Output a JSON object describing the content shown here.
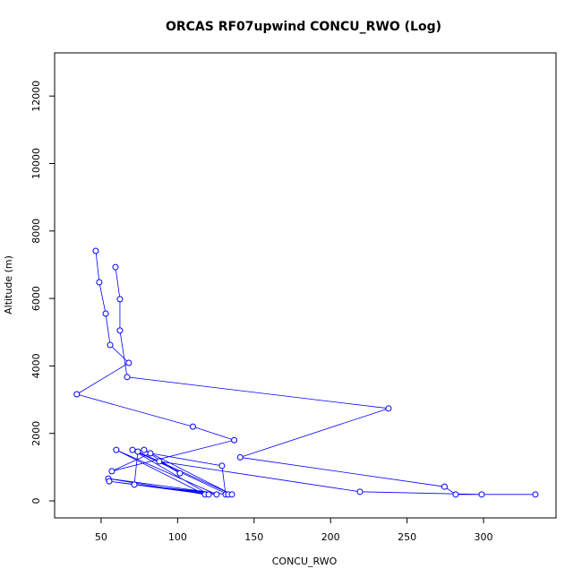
{
  "chart_data": {
    "type": "line",
    "title": "ORCAS RF07upwind CONCU_RWO (Log)",
    "x_label": "CONCU_RWO",
    "y_label": "Altitude (m)",
    "series": [
      {
        "color": "#0000ff",
        "x": [
          46.5,
          48.8,
          53,
          55.9,
          68.1,
          34.1,
          110,
          137,
          57,
          82.2,
          129,
          131.4,
          54.7,
          117.9,
          59.9,
          125.5,
          55.3,
          120.3,
          70.5,
          133.1,
          71.7,
          74,
          135.5,
          78.1,
          101.5,
          88,
          219.2,
          298.8,
          333.9,
          281.8,
          274.5,
          140.9,
          237.9,
          67,
          62.3,
          62.3,
          59.4
        ],
        "values": [
          7410,
          6480,
          5550,
          4620,
          4090,
          3160,
          2200,
          1800,
          880,
          1410,
          1040,
          190,
          660,
          190,
          1510,
          190,
          580,
          190,
          1510,
          190,
          480,
          1460,
          190,
          1510,
          820,
          1170,
          270,
          190,
          190,
          190,
          420,
          1290,
          2740,
          3670,
          5050,
          5980,
          6930
        ]
      }
    ],
    "xlim": [
      19.6,
      347.4
    ],
    "ylim": [
      -505,
      13280
    ],
    "xticks": [
      50,
      100,
      150,
      200,
      250,
      300
    ],
    "yticks": [
      0,
      2000,
      4000,
      6000,
      8000,
      10000,
      12000
    ]
  }
}
